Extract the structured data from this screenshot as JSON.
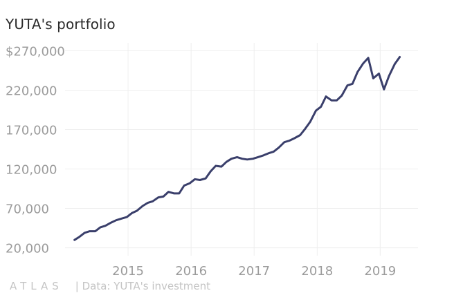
{
  "chart_data": {
    "type": "line",
    "title": "YUTA's portfolio",
    "xlabel": "",
    "ylabel": "",
    "source_text": "| Data: YUTA's investment",
    "logo_text": "ATLAS",
    "line_color": "#3a3f6b",
    "grid": true,
    "xlim": [
      2014.0,
      2019.6
    ],
    "ylim": [
      10000,
      280000
    ],
    "x_ticks": [
      2015,
      2016,
      2017,
      2018,
      2019
    ],
    "x_tick_labels": [
      "2015",
      "2016",
      "2017",
      "2018",
      "2019"
    ],
    "y_ticks": [
      20000,
      70000,
      120000,
      170000,
      220000,
      270000
    ],
    "y_tick_labels": [
      "20,000",
      "70,000",
      "120,000",
      "170,000",
      "220,000",
      "$270,000"
    ],
    "series": [
      {
        "x": [
          2014.15,
          2014.23,
          2014.31,
          2014.39,
          2014.48,
          2014.56,
          2014.64,
          2014.73,
          2014.81,
          2014.89,
          2014.98,
          2015.06,
          2015.14,
          2015.23,
          2015.31,
          2015.39,
          2015.48,
          2015.56,
          2015.64,
          2015.73,
          2015.81,
          2015.89,
          2015.98,
          2016.06,
          2016.14,
          2016.23,
          2016.31,
          2016.39,
          2016.48,
          2016.56,
          2016.64,
          2016.73,
          2016.81,
          2016.89,
          2016.98,
          2017.06,
          2017.14,
          2017.23,
          2017.31,
          2017.39,
          2017.48,
          2017.56,
          2017.64,
          2017.73,
          2017.81,
          2017.89,
          2017.98,
          2018.06,
          2018.14,
          2018.23,
          2018.31,
          2018.39,
          2018.48,
          2018.56,
          2018.64,
          2018.73,
          2018.81,
          2018.89,
          2018.98,
          2019.06,
          2019.14,
          2019.23,
          2019.31
        ],
        "values": [
          30000,
          34000,
          39000,
          41000,
          41000,
          46000,
          48000,
          52000,
          55000,
          57000,
          59000,
          64000,
          67000,
          73000,
          77000,
          79000,
          84000,
          85000,
          91000,
          89000,
          89000,
          99000,
          102000,
          107000,
          106000,
          108000,
          117000,
          124000,
          123000,
          129000,
          133000,
          135000,
          133000,
          132000,
          133000,
          135000,
          137000,
          140000,
          142000,
          147000,
          154000,
          156000,
          159000,
          163000,
          171000,
          180000,
          194000,
          199000,
          212000,
          207000,
          207000,
          213000,
          226000,
          228000,
          243000,
          254000,
          261000,
          235000,
          241000,
          221000,
          238000,
          253000,
          262000
        ]
      }
    ]
  }
}
